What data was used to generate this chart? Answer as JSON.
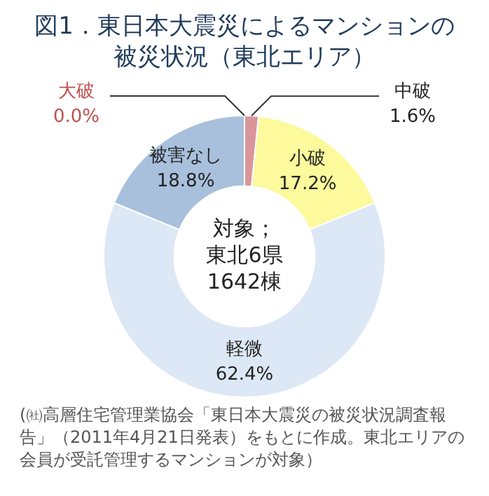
{
  "chart_data": {
    "type": "donut",
    "title": "図1．東日本大震災によるマンションの被災状況（東北エリア）",
    "categories": [
      "大破",
      "中破",
      "小破",
      "軽微",
      "被害なし"
    ],
    "values": [
      0.0,
      1.6,
      17.2,
      62.4,
      18.8
    ],
    "colors": [
      "#c0504d",
      "#d9959a",
      "#fcfa9c",
      "#dce8f5",
      "#a8c0dc"
    ],
    "value_labels": [
      "0.0%",
      "1.6%",
      "17.2%",
      "62.4%",
      "18.8%"
    ],
    "legend": false,
    "annotations": [
      "対象；",
      "東北6県",
      "1642棟",
      "(㈳高層住宅管理業協会「東日本大震災の被災状況調査報告」（2011年4月21日発表）をもとに作成。東北エリアの会員が受託管理するマンションが対象）"
    ]
  }
}
